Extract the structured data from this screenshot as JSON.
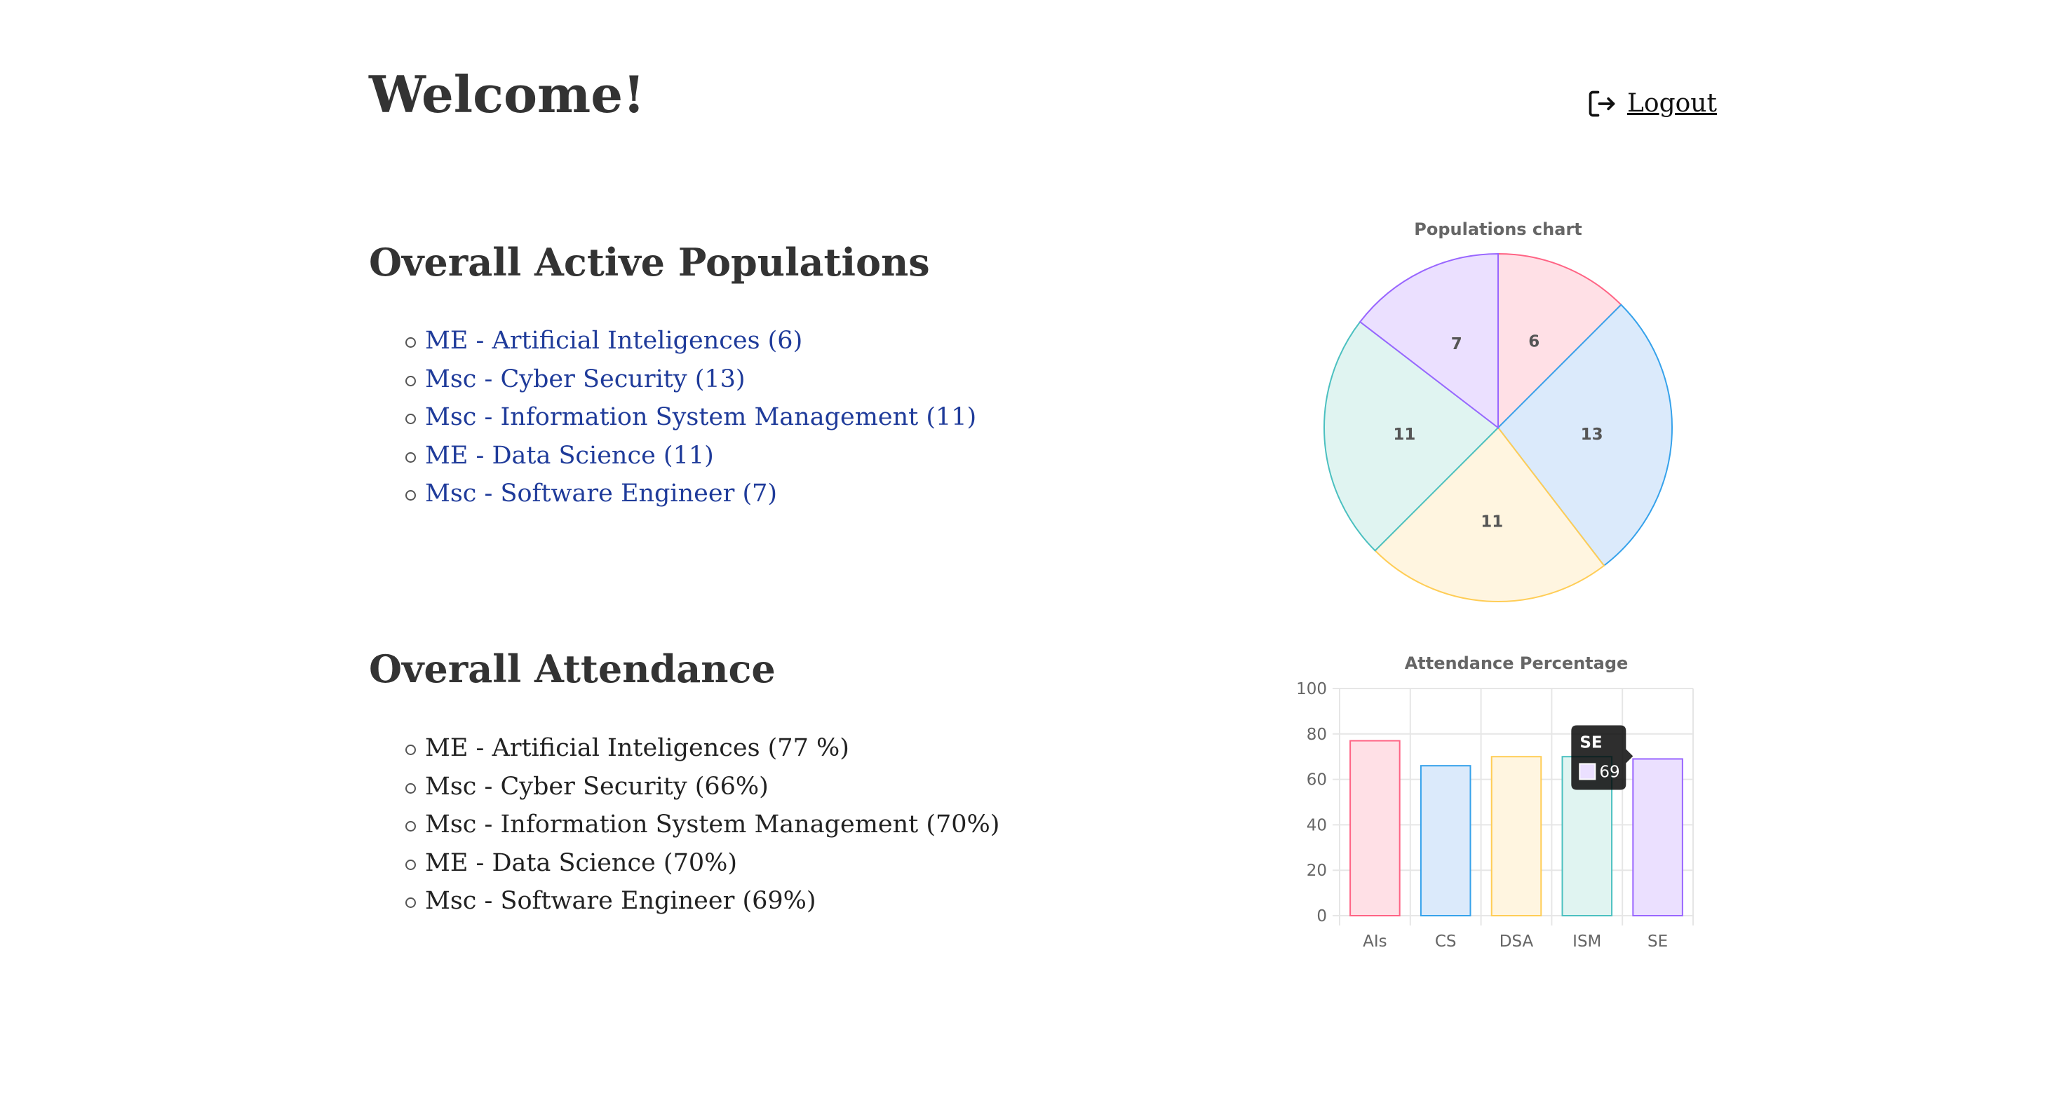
{
  "header": {
    "title": "Welcome!",
    "logout_label": "Logout"
  },
  "populations": {
    "heading": "Overall Active Populations",
    "items": [
      "ME - Artificial Inteligences (6)",
      "Msc - Cyber Security (13)",
      "Msc - Information System Management (11)",
      "ME - Data Science (11)",
      "Msc - Software Engineer (7)"
    ]
  },
  "attendance": {
    "heading": "Overall Attendance",
    "items": [
      "ME - Artificial Inteligences (77 %)",
      "Msc - Cyber Security (66%)",
      "Msc - Information System Management (70%)",
      "ME - Data Science (70%)",
      "Msc - Software Engineer (69%)"
    ]
  },
  "icons": {
    "logout": "logout-icon"
  },
  "chart_data": [
    {
      "type": "pie",
      "title": "Populations chart",
      "categories": [
        "AIs",
        "CS",
        "DSA",
        "ISM",
        "SE"
      ],
      "values": [
        6,
        13,
        11,
        11,
        7
      ],
      "colors": {
        "fill": [
          "#ffe0e6",
          "#dbeafb",
          "#fff5e0",
          "#e0f4f1",
          "#ebe0ff"
        ],
        "border": [
          "#ff6384",
          "#36a2eb",
          "#ffcd56",
          "#4bc0c0",
          "#9966ff"
        ]
      },
      "legend": "none"
    },
    {
      "type": "bar",
      "title": "Attendance Percentage",
      "categories": [
        "AIs",
        "CS",
        "DSA",
        "ISM",
        "SE"
      ],
      "values": [
        77,
        66,
        70,
        70,
        69
      ],
      "ylim": [
        0,
        100
      ],
      "yticks": [
        0,
        20,
        40,
        60,
        80,
        100
      ],
      "grid": true,
      "legend": "none",
      "colors": {
        "fill": [
          "#ffe0e6",
          "#dbeafb",
          "#fff5e0",
          "#e0f4f1",
          "#ebe0ff"
        ],
        "border": [
          "#ff6384",
          "#36a2eb",
          "#ffcd56",
          "#4bc0c0",
          "#9966ff"
        ]
      },
      "tooltip": {
        "category": "SE",
        "value": 69
      }
    }
  ]
}
